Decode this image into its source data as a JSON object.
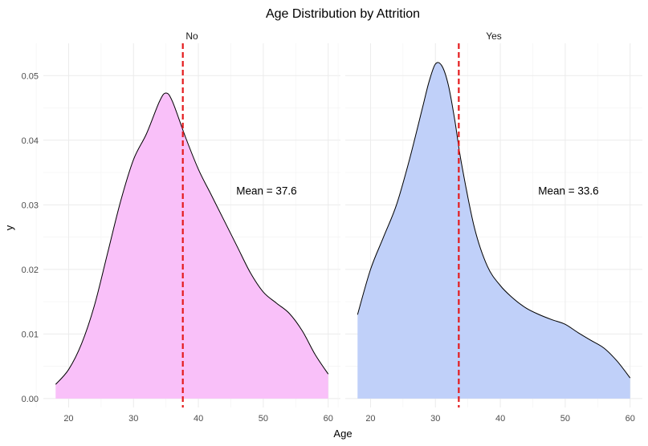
{
  "chart_data": {
    "type": "area",
    "title": "Age Distribution by Attrition",
    "xlabel": "Age",
    "ylabel": "y",
    "xlim": [
      18,
      60
    ],
    "ylim": [
      0,
      0.055
    ],
    "x_ticks": [
      20,
      30,
      40,
      50,
      60
    ],
    "y_ticks": [
      0.0,
      0.01,
      0.02,
      0.03,
      0.04,
      0.05
    ],
    "y_tick_labels": [
      "0.00",
      "0.01",
      "0.02",
      "0.03",
      "0.04",
      "0.05"
    ],
    "grid": true,
    "mean_line_color": "#e41a1c",
    "panels": [
      {
        "label": "No",
        "fill": "#f9c0f9",
        "mean": 37.6,
        "mean_label": "Mean = 37.6",
        "x": [
          18,
          20,
          22,
          24,
          26,
          28,
          30,
          32,
          34,
          35,
          36,
          38,
          40,
          42,
          44,
          46,
          48,
          50,
          52,
          54,
          56,
          58,
          60
        ],
        "y": [
          0.0022,
          0.0045,
          0.0085,
          0.0145,
          0.0225,
          0.0305,
          0.037,
          0.041,
          0.046,
          0.0473,
          0.046,
          0.0405,
          0.0355,
          0.0315,
          0.0275,
          0.0235,
          0.0195,
          0.0165,
          0.0148,
          0.0132,
          0.0105,
          0.0068,
          0.0038
        ]
      },
      {
        "label": "Yes",
        "fill": "#c0d0f9",
        "mean": 33.6,
        "mean_label": "Mean = 33.6",
        "x": [
          18,
          20,
          22,
          24,
          26,
          28,
          29,
          30,
          31,
          32,
          33,
          34,
          36,
          38,
          40,
          42,
          44,
          46,
          48,
          50,
          52,
          54,
          56,
          58,
          60
        ],
        "y": [
          0.013,
          0.02,
          0.025,
          0.03,
          0.037,
          0.045,
          0.049,
          0.0518,
          0.0515,
          0.0485,
          0.043,
          0.0365,
          0.0265,
          0.0205,
          0.0175,
          0.0155,
          0.014,
          0.013,
          0.0122,
          0.0115,
          0.0102,
          0.009,
          0.0078,
          0.0058,
          0.0032
        ]
      }
    ]
  }
}
